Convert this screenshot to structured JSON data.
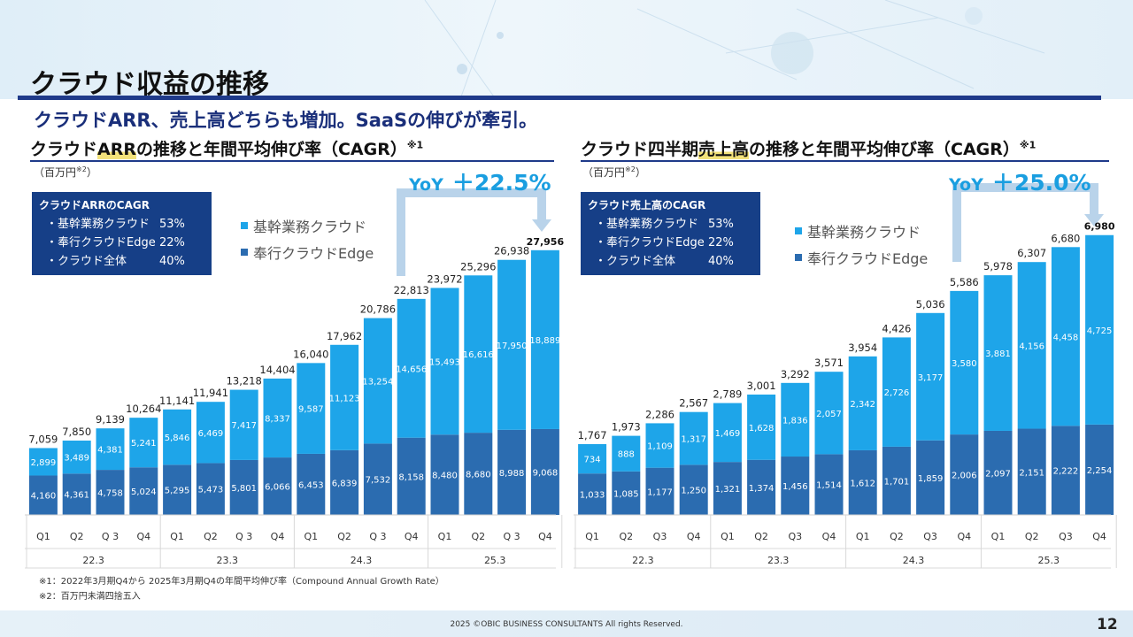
{
  "page": {
    "title": "クラウド収益の推移",
    "subtitle": "クラウドARR、売上高どちらも増加。SaaSの伸びが牽引。",
    "footnote1": "※1：2022年3月期Q4から 2025年3月期Q4の年間平均伸び率（Compound Annual Growth Rate）",
    "footnote2": "※2：百万円未満四捨五入",
    "copyright": "2025 ©OBIC BUSINESS CONSULTANTS All rights Reserved.",
    "page_number": "12"
  },
  "colors": {
    "core": "#1ea5e9",
    "edge": "#2b6cb0",
    "accent_navy": "#163f87",
    "yoy_blue": "#1a9ee0",
    "bracket": "#b9d3ea"
  },
  "left": {
    "title_pre": "クラウド",
    "title_hl": "ARR",
    "title_post": "の推移と年間平均伸び率（CAGR）",
    "title_sup": "※1",
    "unit": "（百万円",
    "unit_sup": "※2",
    "unit_close": "）",
    "cagr": {
      "title": "クラウドARRのCAGR",
      "rows": [
        {
          "label": "・基幹業務クラウド",
          "value": "53%"
        },
        {
          "label": "・奉行クラウドEdge",
          "value": "22%"
        },
        {
          "label": "・クラウド全体",
          "value": "40%"
        }
      ]
    },
    "legend": {
      "core": "基幹業務クラウド",
      "edge": "奉行クラウドEdge"
    },
    "yoy": {
      "label": "YoY",
      "value": "＋22.5%"
    }
  },
  "right": {
    "title_pre": "クラウド四半期",
    "title_hl": "売上高",
    "title_post": "の推移と年間平均伸び率（CAGR）",
    "title_sup": "※1",
    "unit": "（百万円",
    "unit_sup": "※2",
    "unit_close": "）",
    "cagr": {
      "title": "クラウド売上高のCAGR",
      "rows": [
        {
          "label": "・基幹業務クラウド",
          "value": "53%"
        },
        {
          "label": "・奉行クラウドEdge",
          "value": "22%"
        },
        {
          "label": "・クラウド全体",
          "value": "40%"
        }
      ]
    },
    "legend": {
      "core": "基幹業務クラウド",
      "edge": "奉行クラウドEdge"
    },
    "yoy": {
      "label": "YoY",
      "value": "＋25.0%"
    }
  },
  "chart_data": [
    {
      "type": "bar",
      "stacked": true,
      "title": "クラウドARRの推移と年間平均伸び率（CAGR）",
      "ylabel": "百万円",
      "categories": [
        "Q1",
        "Q2",
        "Q 3",
        "Q4",
        "Q1",
        "Q2",
        "Q 3",
        "Q4",
        "Q1",
        "Q2",
        "Q 3",
        "Q4",
        "Q1",
        "Q2",
        "Q 3",
        "Q4"
      ],
      "groups": [
        "22.3",
        "23.3",
        "24.3",
        "25.3"
      ],
      "series": [
        {
          "name": "奉行クラウドEdge",
          "values": [
            4160,
            4361,
            4758,
            5024,
            5295,
            5473,
            5801,
            6066,
            6453,
            6839,
            7532,
            8158,
            8480,
            8680,
            8988,
            9068
          ]
        },
        {
          "name": "基幹業務クラウド",
          "values": [
            2899,
            3489,
            4381,
            5241,
            5846,
            6469,
            7417,
            8337,
            9587,
            11123,
            13254,
            14656,
            15493,
            16616,
            17950,
            18889
          ]
        }
      ],
      "totals": [
        7059,
        7850,
        9139,
        10264,
        11141,
        11941,
        13218,
        14404,
        16040,
        17962,
        20786,
        22813,
        23972,
        25296,
        26938,
        27956
      ],
      "ylim": [
        0,
        28500
      ]
    },
    {
      "type": "bar",
      "stacked": true,
      "title": "クラウド四半期売上高の推移と年間平均伸び率（CAGR）",
      "ylabel": "百万円",
      "categories": [
        "Q1",
        "Q2",
        "Q3",
        "Q4",
        "Q1",
        "Q2",
        "Q3",
        "Q4",
        "Q1",
        "Q2",
        "Q3",
        "Q4",
        "Q1",
        "Q2",
        "Q3",
        "Q4"
      ],
      "groups": [
        "22.3",
        "23.3",
        "24.3",
        "25.3"
      ],
      "series": [
        {
          "name": "奉行クラウドEdge",
          "values": [
            1033,
            1085,
            1177,
            1250,
            1321,
            1374,
            1456,
            1514,
            1612,
            1701,
            1859,
            2006,
            2097,
            2151,
            2222,
            2254
          ]
        },
        {
          "name": "基幹業務クラウド",
          "values": [
            734,
            888,
            1109,
            1317,
            1469,
            1628,
            1836,
            2057,
            2342,
            2726,
            3177,
            3580,
            3881,
            4156,
            4458,
            4725
          ]
        }
      ],
      "totals": [
        1767,
        1973,
        2286,
        2567,
        2789,
        3001,
        3292,
        3571,
        3954,
        4426,
        5036,
        5586,
        5978,
        6307,
        6680,
        6980
      ],
      "ylim": [
        0,
        7150
      ]
    }
  ]
}
